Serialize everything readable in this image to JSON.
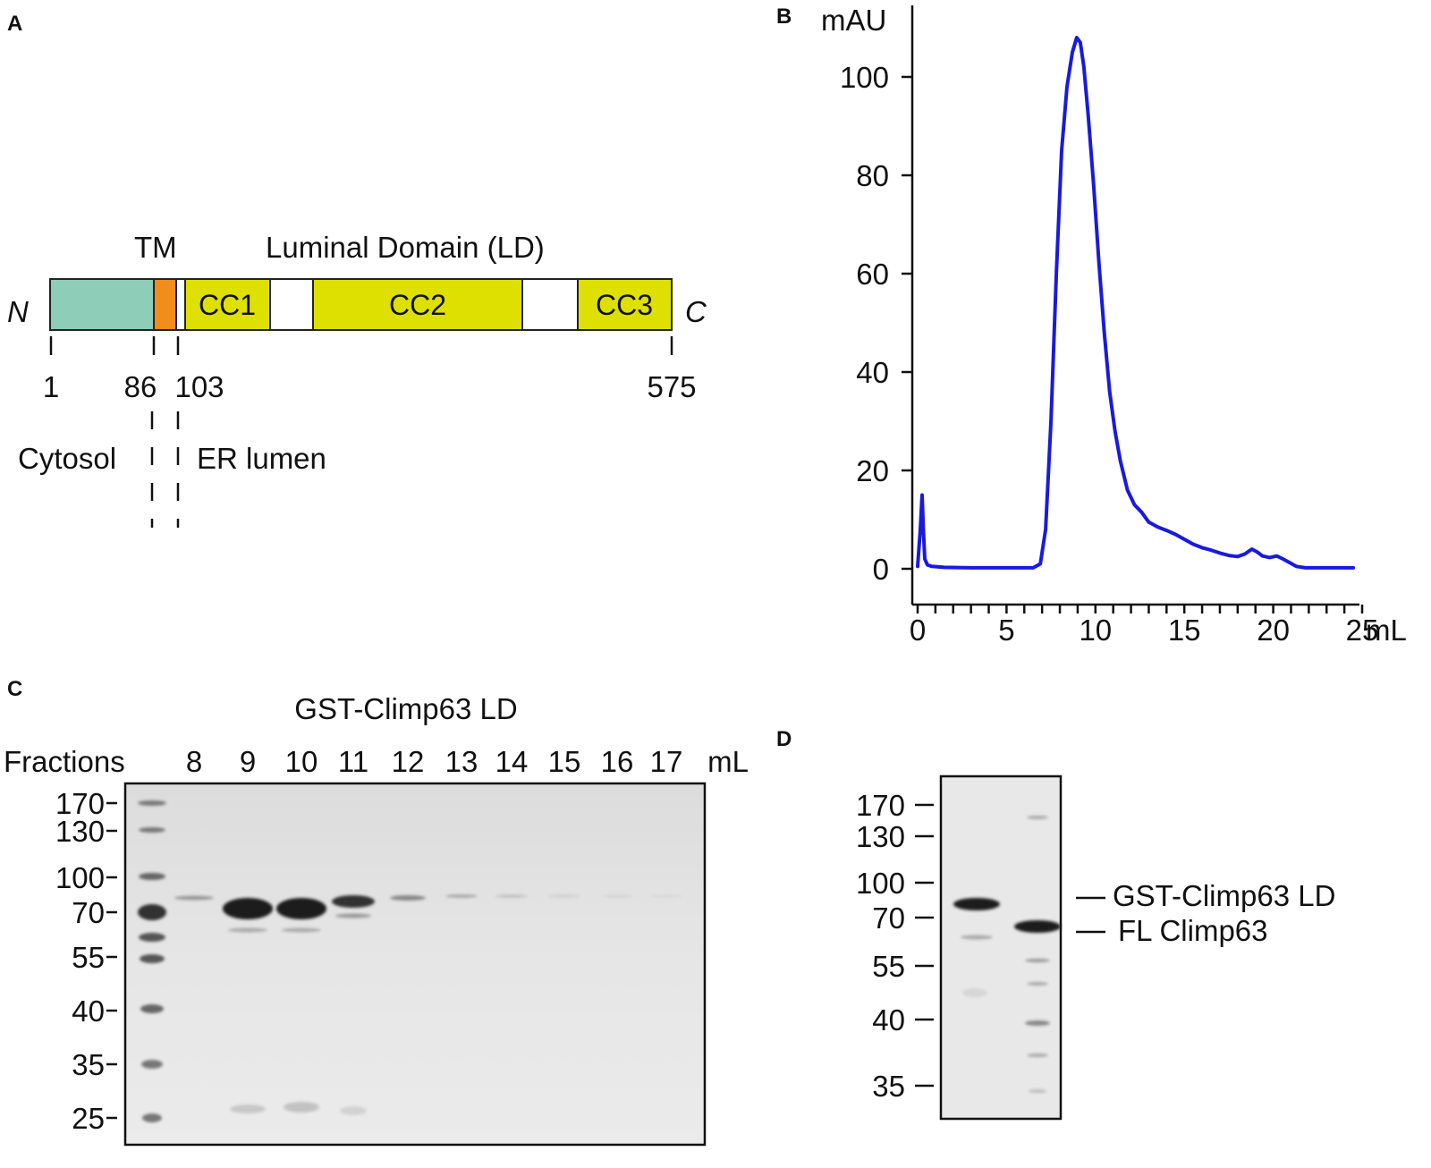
{
  "panels": {
    "a": {
      "letter": "A",
      "tm_label": "TM",
      "ld_label": "Luminal Domain (LD)",
      "n_label": "N",
      "c_label": "C",
      "domains": [
        {
          "name": "cytosolic",
          "label": "",
          "color": "#8ecdb7"
        },
        {
          "name": "tm",
          "label": "",
          "color": "#f28c1a"
        },
        {
          "name": "linker",
          "label": "",
          "color": "#ffffff"
        },
        {
          "name": "cc1",
          "label": "CC1",
          "color": "#dde000"
        },
        {
          "name": "gap1",
          "label": "",
          "color": "#ffffff"
        },
        {
          "name": "cc2",
          "label": "CC2",
          "color": "#dde000"
        },
        {
          "name": "gap2",
          "label": "",
          "color": "#ffffff"
        },
        {
          "name": "cc3",
          "label": "CC3",
          "color": "#dde000"
        }
      ],
      "positions": [
        "1",
        "86",
        "103",
        "575"
      ],
      "cytosol_label": "Cytosol",
      "lumen_label": "ER lumen"
    },
    "b": {
      "letter": "B",
      "line_color": "#1a1adb"
    },
    "c": {
      "letter": "C",
      "title": "GST-Climp63 LD",
      "fractions_label": "Fractions",
      "unit_label": "mL",
      "fractions": [
        "8",
        "9",
        "10",
        "11",
        "12",
        "13",
        "14",
        "15",
        "16",
        "17"
      ],
      "markers": [
        "170",
        "130",
        "100",
        "70",
        "55",
        "40",
        "35",
        "25"
      ]
    },
    "d": {
      "letter": "D",
      "markers": [
        "170",
        "130",
        "100",
        "70",
        "55",
        "40",
        "35"
      ],
      "band_labels": [
        "GST-Climp63 LD",
        "FL Climp63"
      ]
    }
  },
  "chart_data": {
    "type": "line",
    "ylabel": "mAU",
    "xunit": "mL",
    "xlim": [
      0,
      25
    ],
    "ylim": [
      0,
      110
    ],
    "xticks": [
      0,
      5,
      10,
      15,
      20,
      25
    ],
    "xtick_labels": [
      "0",
      "5",
      "10",
      "15",
      "20",
      "25"
    ],
    "yticks": [
      0,
      20,
      40,
      60,
      80,
      100
    ],
    "grid": false,
    "series": [
      {
        "x": [
          0.0,
          0.15,
          0.25,
          0.32,
          0.4,
          0.55,
          0.8,
          1.5,
          3,
          5,
          6.5,
          6.9,
          7.2,
          7.5,
          7.8,
          8.1,
          8.4,
          8.7,
          8.95,
          9.15,
          9.35,
          9.6,
          9.9,
          10.2,
          10.5,
          10.8,
          11.1,
          11.4,
          11.8,
          12.2,
          12.6,
          13.0,
          13.5,
          14.0,
          14.5,
          15.0,
          15.5,
          16.0,
          16.5,
          17.0,
          17.5,
          18.0,
          18.4,
          18.8,
          19.1,
          19.4,
          19.8,
          20.2,
          20.5,
          20.9,
          21.3,
          21.8,
          22.5,
          23.5,
          24.5
        ],
        "y": [
          0.5,
          8,
          15,
          8,
          2,
          0.8,
          0.5,
          0.3,
          0.2,
          0.2,
          0.2,
          1,
          8,
          30,
          60,
          85,
          98,
          105,
          108,
          107,
          102,
          92,
          78,
          62,
          48,
          36,
          28,
          22,
          16,
          13,
          11.5,
          9.5,
          8.5,
          7.8,
          7.0,
          6.0,
          5.0,
          4.3,
          3.8,
          3.2,
          2.7,
          2.5,
          3.0,
          4.0,
          3.4,
          2.6,
          2.3,
          2.6,
          2.1,
          1.3,
          0.5,
          0.2,
          0.2,
          0.2,
          0.2
        ]
      }
    ]
  }
}
